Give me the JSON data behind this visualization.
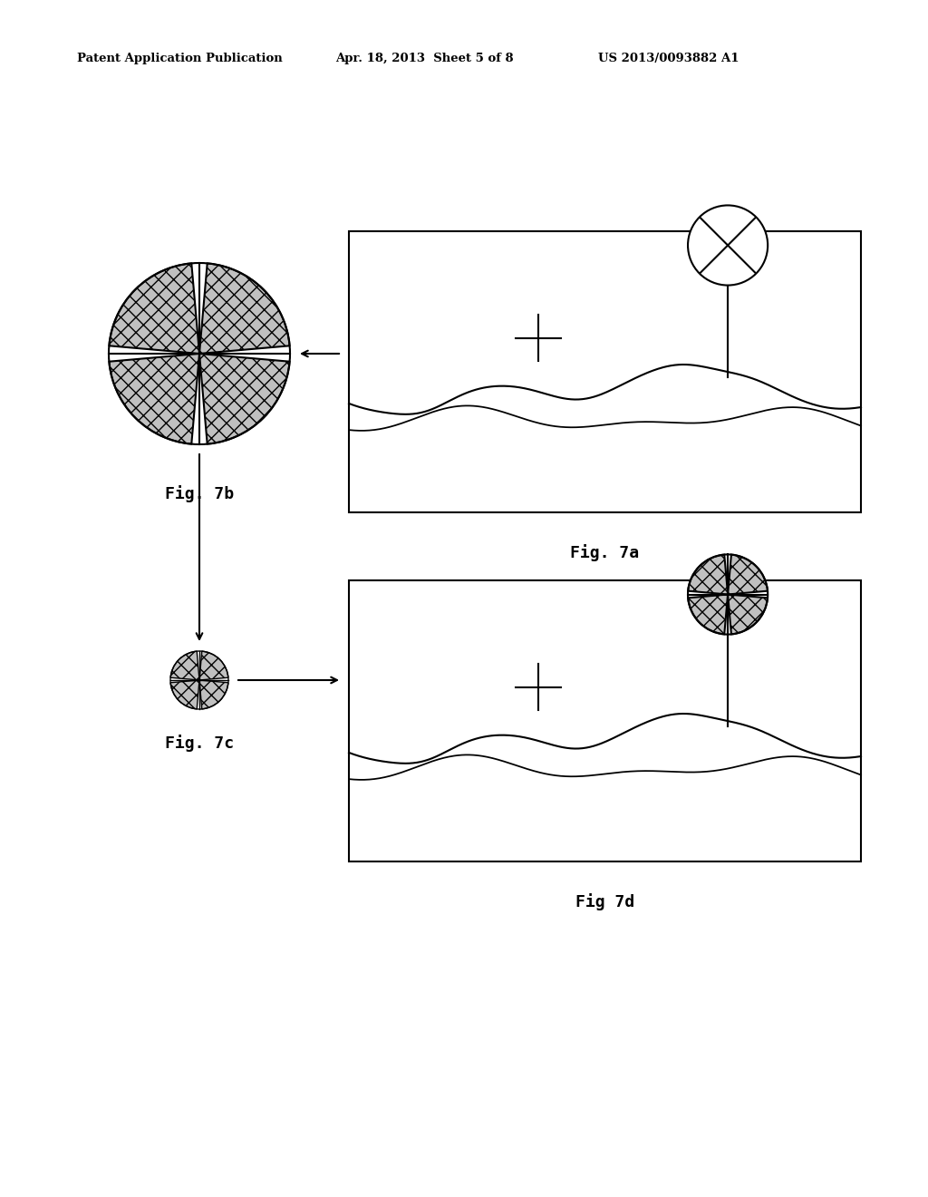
{
  "bg_color": "#ffffff",
  "header_text": "Patent Application Publication",
  "header_date": "Apr. 18, 2013  Sheet 5 of 8",
  "header_patent": "US 2013/0093882 A1",
  "fig7a_label": "Fig. 7a",
  "fig7b_label": "Fig. 7b",
  "fig7c_label": "Fig. 7c",
  "fig7d_label": "Fig 7d",
  "hatch_color": "#888888",
  "line_color": "#000000"
}
